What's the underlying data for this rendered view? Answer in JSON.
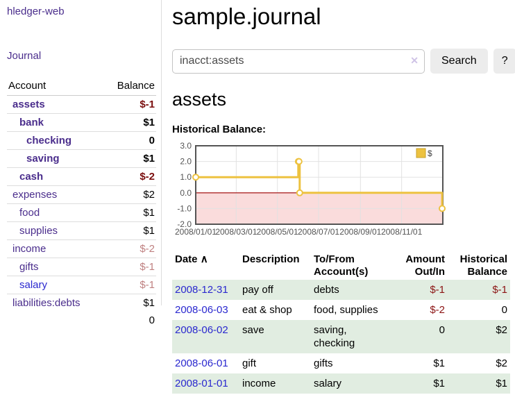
{
  "colors": {
    "link_purple": "#4a2d8c",
    "link_blue": "#2a28cf",
    "negative_strong": "#7a0d0d",
    "negative_soft": "#bf8080",
    "negative_register": "#8c1414",
    "row_stripe_green": "#e1ede1",
    "series_gold": "#edc240",
    "chart_negative_region": "#fadcdc",
    "chart_zero_line": "#a00000"
  },
  "sidebar": {
    "app_title": "hledger-web",
    "nav_journal": "Journal",
    "account_header": "Account",
    "balance_header": "Balance",
    "accounts": [
      {
        "name": "assets",
        "depth": 1,
        "bold": true,
        "balance": "$-1"
      },
      {
        "name": "bank",
        "depth": 2,
        "bold": true,
        "balance": "$1"
      },
      {
        "name": "checking",
        "depth": 3,
        "bold": true,
        "balance": "0"
      },
      {
        "name": "saving",
        "depth": 3,
        "bold": true,
        "balance": "$1"
      },
      {
        "name": "cash",
        "depth": 2,
        "bold": true,
        "balance": "$-2"
      },
      {
        "name": "expenses",
        "depth": 1,
        "bold": false,
        "balance": "$2"
      },
      {
        "name": "food",
        "depth": 2,
        "bold": false,
        "balance": "$1"
      },
      {
        "name": "supplies",
        "depth": 2,
        "bold": false,
        "balance": "$1"
      },
      {
        "name": "income",
        "depth": 1,
        "bold": false,
        "balance": "$-2"
      },
      {
        "name": "gifts",
        "depth": 2,
        "bold": false,
        "balance": "$-1"
      },
      {
        "name": "salary",
        "depth": 2,
        "bold": false,
        "balance": "$-1",
        "blue": true
      },
      {
        "name": "liabilities:debts",
        "depth": 1,
        "bold": false,
        "balance": "$1"
      }
    ],
    "total": "0"
  },
  "main": {
    "title": "sample.journal",
    "search": {
      "value": "inacct:assets",
      "clear_icon": "✕",
      "button_label": "Search",
      "help_label": "?"
    },
    "account_heading": "assets",
    "chart_label": "Historical Balance:",
    "register": {
      "headers": {
        "date": "Date",
        "sort_icon": "∧",
        "description": "Description",
        "account_line1": "To/From",
        "account_line2": "Account(s)",
        "amount_line1": "Amount",
        "amount_line2": "Out/In",
        "balance_line1": "Historical",
        "balance_line2": "Balance"
      },
      "rows": [
        {
          "date": "2008-12-31",
          "description": "pay off",
          "accounts": "debts",
          "amount": "$-1",
          "balance": "$-1"
        },
        {
          "date": "2008-06-03",
          "description": "eat & shop",
          "accounts": "food, supplies",
          "amount": "$-2",
          "balance": "0"
        },
        {
          "date": "2008-06-02",
          "description": "save",
          "accounts": "saving, checking",
          "amount": "0",
          "balance": "$2"
        },
        {
          "date": "2008-06-01",
          "description": "gift",
          "accounts": "gifts",
          "amount": "$1",
          "balance": "$2"
        },
        {
          "date": "2008-01-01",
          "description": "income",
          "accounts": "salary",
          "amount": "$1",
          "balance": "$1"
        }
      ]
    }
  },
  "chart_data": {
    "type": "line",
    "title": "Historical Balance:",
    "series": [
      {
        "name": "$",
        "color": "#edc240",
        "step": true,
        "markers": true,
        "points": [
          [
            "2008-01-01",
            1
          ],
          [
            "2008-06-01",
            2
          ],
          [
            "2008-06-02",
            2
          ],
          [
            "2008-06-03",
            0
          ],
          [
            "2008-12-31",
            -1
          ]
        ]
      }
    ],
    "x_range": [
      "2008-01-01",
      "2009-01-01"
    ],
    "x_ticks": [
      {
        "date": "2008-01-01",
        "label": "2008/01/01"
      },
      {
        "date": "2008-03-01",
        "label": "2008/03/01"
      },
      {
        "date": "2008-05-01",
        "label": "2008/05/01"
      },
      {
        "date": "2008-07-01",
        "label": "2008/07/01"
      },
      {
        "date": "2008-09-01",
        "label": "2008/09/01"
      },
      {
        "date": "2008-11-01",
        "label": "2008/11/01"
      }
    ],
    "ylim": [
      -2,
      3
    ],
    "y_ticks": [
      3,
      2,
      1,
      0,
      -1,
      -2
    ],
    "y_tick_labels": [
      "3.0",
      "2.0",
      "1.0",
      "0.0",
      "-1.0",
      "-2.0"
    ],
    "grid": true,
    "negative_region_color": "#fadcdc",
    "zero_line_color": "#a00000",
    "legend": {
      "position": "top-right",
      "label": "$"
    }
  }
}
